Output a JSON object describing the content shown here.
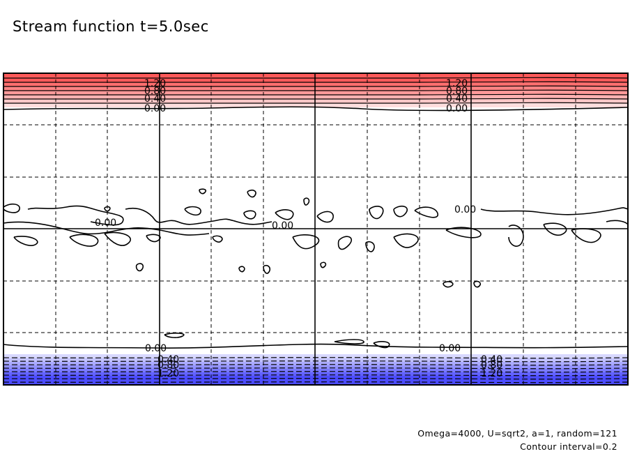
{
  "chart_data": {
    "type": "contour",
    "title": "Stream function t=5.0sec",
    "notes": [
      "Omega=4000, U=sqrt2, a=1, random=121",
      "Contour interval=0.2"
    ],
    "contour_interval": 0.2,
    "grid": true,
    "level_labels_top": [
      "1.20",
      "0.80",
      "0.40",
      "0.00"
    ],
    "level_labels_bottom": [
      "0.00",
      "0.40",
      "0.80",
      "1.20"
    ],
    "level_labels_middle": [
      "0.00",
      "0.00",
      "0.00"
    ],
    "top_band_colors": [
      "#ff5a5a",
      "#ff6e6e",
      "#ff8484",
      "#ff9a9a",
      "#ffb2b2",
      "#ffc8c8",
      "#ffdede"
    ],
    "bottom_band_colors": [
      "#d8d8ff",
      "#c2c2ff",
      "#aaaaff",
      "#9292ff",
      "#7a7aff",
      "#6262ff",
      "#4c4cff"
    ]
  }
}
